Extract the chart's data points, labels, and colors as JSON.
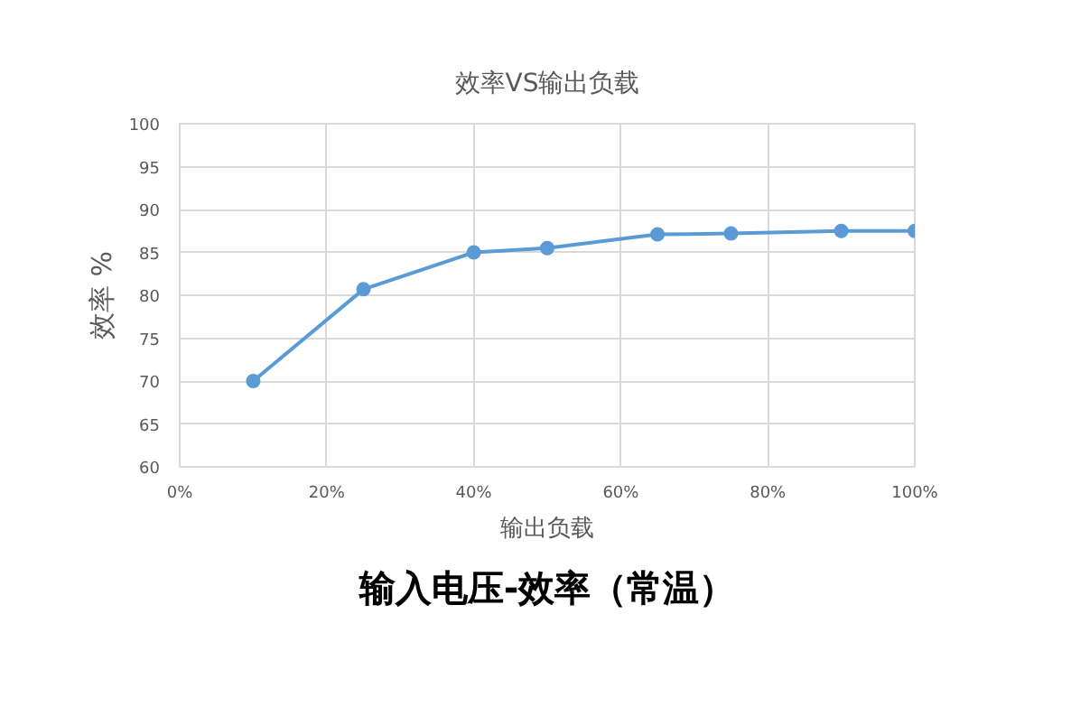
{
  "chart_data": {
    "type": "line",
    "title": "效率VS输出负载",
    "xlabel": "输出负载",
    "ylabel": "效率 %",
    "annotations": [
      "输入电压-效率（常温）"
    ],
    "x": [
      10,
      25,
      40,
      50,
      65,
      75,
      90,
      100
    ],
    "series": [
      {
        "color": "#5b9bd5",
        "values": [
          70,
          80.7,
          85,
          85.5,
          87.1,
          87.2,
          87.5,
          87.5
        ]
      }
    ],
    "xlim": [
      0,
      100
    ],
    "xticks": [
      {
        "value": 0,
        "label": "0%"
      },
      {
        "value": 20,
        "label": "20%"
      },
      {
        "value": 40,
        "label": "40%"
      },
      {
        "value": 60,
        "label": "60%"
      },
      {
        "value": 80,
        "label": "80%"
      },
      {
        "value": 100,
        "label": "100%"
      }
    ],
    "ylim": [
      60,
      100
    ],
    "yticks": [
      60,
      65,
      70,
      75,
      80,
      85,
      90,
      95,
      100
    ],
    "grid": true,
    "marker": "circle"
  }
}
